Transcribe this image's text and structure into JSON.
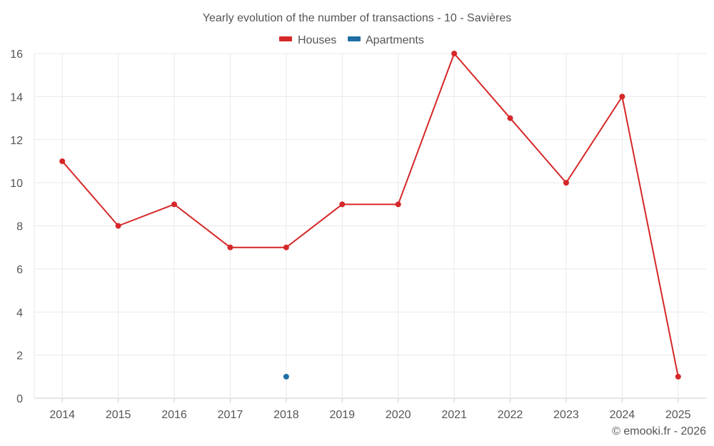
{
  "chart_data": {
    "type": "line",
    "title": "Yearly evolution of the number of transactions - 10 - Savières",
    "xlabel": "",
    "ylabel": "",
    "categories": [
      "2014",
      "2015",
      "2016",
      "2017",
      "2018",
      "2019",
      "2020",
      "2021",
      "2022",
      "2023",
      "2024",
      "2025"
    ],
    "ylim": [
      0,
      16
    ],
    "yticks": [
      0,
      2,
      4,
      6,
      8,
      10,
      12,
      14,
      16
    ],
    "ytick_labels": [
      "0",
      "2",
      "4",
      "6",
      "8",
      "10",
      "12",
      "14",
      "16"
    ],
    "grid": true,
    "legend_position": "top-center",
    "series": [
      {
        "name": "Houses",
        "color": "#d62728",
        "values": [
          11,
          8,
          9,
          7,
          7,
          9,
          9,
          16,
          13,
          10,
          14,
          1
        ]
      },
      {
        "name": "Apartments",
        "color": "#1f6fa5",
        "values": [
          null,
          null,
          null,
          null,
          1,
          null,
          null,
          null,
          null,
          null,
          null,
          null
        ]
      }
    ]
  },
  "credit": "© emooki.fr - 2026"
}
